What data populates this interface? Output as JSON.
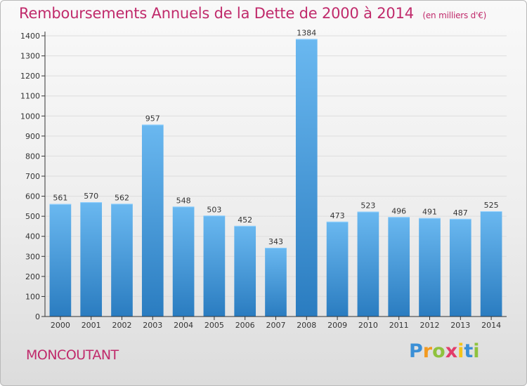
{
  "colors": {
    "accent": "#c02a6b",
    "bar_top": "#6ab8f0",
    "bar_bottom": "#2a7cc0",
    "grid": "#dddddd",
    "axis": "#333333"
  },
  "commune": "MONCOUTANT",
  "brand": {
    "letters": [
      "P",
      "r",
      "o",
      "x",
      "i",
      "t",
      "i"
    ],
    "colors": [
      "#3a8fd6",
      "#f29a21",
      "#8fc23e",
      "#e23c6a",
      "#f5c518",
      "#3a8fd6",
      "#8fc23e"
    ]
  },
  "chart_data": {
    "type": "bar",
    "title": "Remboursements Annuels de la Dette de 2000 à 2014",
    "subtitle": "(en milliers d'€)",
    "xlabel": "",
    "ylabel": "",
    "categories": [
      "2000",
      "2001",
      "2002",
      "2003",
      "2004",
      "2005",
      "2006",
      "2007",
      "2008",
      "2009",
      "2010",
      "2011",
      "2012",
      "2013",
      "2014"
    ],
    "values": [
      561,
      570,
      562,
      957,
      548,
      503,
      452,
      343,
      1384,
      473,
      523,
      496,
      491,
      487,
      525
    ],
    "ylim": [
      0,
      1400
    ],
    "yticks": [
      0,
      100,
      200,
      300,
      400,
      500,
      600,
      700,
      800,
      900,
      1000,
      1100,
      1200,
      1300,
      1400
    ],
    "grid": true,
    "data_labels": true,
    "legend": "none"
  }
}
